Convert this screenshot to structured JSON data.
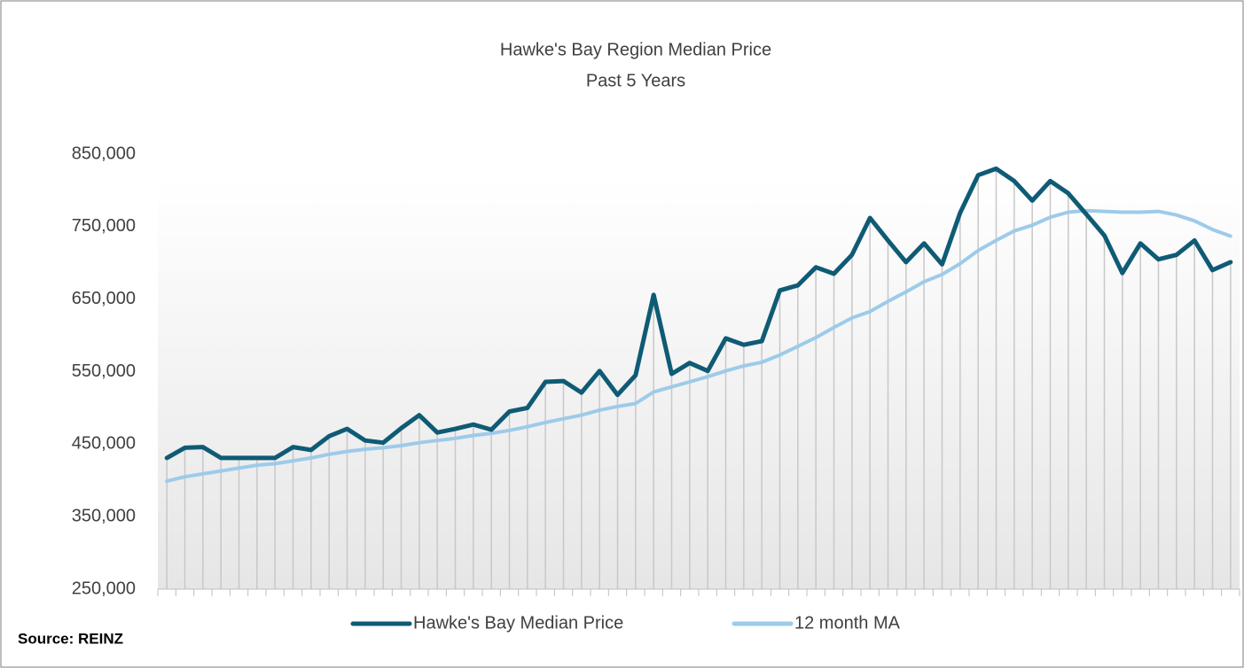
{
  "chart_data": {
    "type": "line",
    "title": "Hawke's Bay Region Median Price",
    "subtitle": "Past 5 Years",
    "source": "Source: REINZ",
    "categories": [
      null,
      null,
      null,
      null,
      null,
      null,
      null,
      null,
      null,
      null,
      null,
      null,
      null,
      null,
      null,
      null,
      null,
      null,
      null,
      null,
      null,
      null,
      null,
      null,
      null,
      null,
      null,
      null,
      null,
      null,
      null,
      null,
      null,
      null,
      null,
      null,
      null,
      null,
      null,
      null,
      null,
      null,
      null,
      null,
      null,
      null,
      null,
      null,
      null,
      null,
      null,
      null,
      null,
      null,
      null,
      null,
      null,
      null,
      null,
      null
    ],
    "series": [
      {
        "name": "Hawke's Bay Median Price",
        "color": "#0f5b75",
        "values": [
          431000,
          445000,
          446000,
          431000,
          431000,
          431000,
          431000,
          446000,
          442000,
          461000,
          471000,
          455000,
          452000,
          472000,
          490000,
          466000,
          471000,
          477000,
          470000,
          495000,
          500000,
          536000,
          537000,
          521000,
          551000,
          518000,
          545000,
          656000,
          547000,
          562000,
          551000,
          596000,
          587000,
          592000,
          662000,
          669000,
          694000,
          685000,
          711000,
          762000,
          731000,
          701000,
          727000,
          698000,
          769000,
          821000,
          830000,
          813000,
          786000,
          813000,
          796000,
          767000,
          738000,
          686000,
          727000,
          705000,
          711000,
          731000,
          690000,
          701000
        ]
      },
      {
        "name": "12 month MA",
        "color": "#9dcbe9",
        "values": [
          399000,
          405000,
          409000,
          413000,
          417000,
          421000,
          423000,
          427000,
          431000,
          436000,
          440000,
          443000,
          445000,
          448000,
          452000,
          455000,
          458000,
          462000,
          465000,
          469000,
          474000,
          480000,
          485000,
          490000,
          497000,
          502000,
          506000,
          522000,
          529000,
          536000,
          543000,
          551000,
          558000,
          563000,
          573000,
          585000,
          597000,
          611000,
          624000,
          633000,
          647000,
          660000,
          674000,
          684000,
          699000,
          717000,
          731000,
          744000,
          752000,
          763000,
          770000,
          772000,
          771000,
          770000,
          770000,
          771000,
          766000,
          758000,
          746000,
          737000
        ]
      }
    ],
    "ylim": [
      250000,
      850000
    ],
    "yticks": [
      {
        "value": 250000,
        "label": "250,000"
      },
      {
        "value": 350000,
        "label": "350,000"
      },
      {
        "value": 450000,
        "label": "450,000"
      },
      {
        "value": 550000,
        "label": "550,000"
      },
      {
        "value": 650000,
        "label": "650,000"
      },
      {
        "value": 750000,
        "label": "750,000"
      },
      {
        "value": 850000,
        "label": "850,000"
      }
    ],
    "drop_lines": true
  }
}
